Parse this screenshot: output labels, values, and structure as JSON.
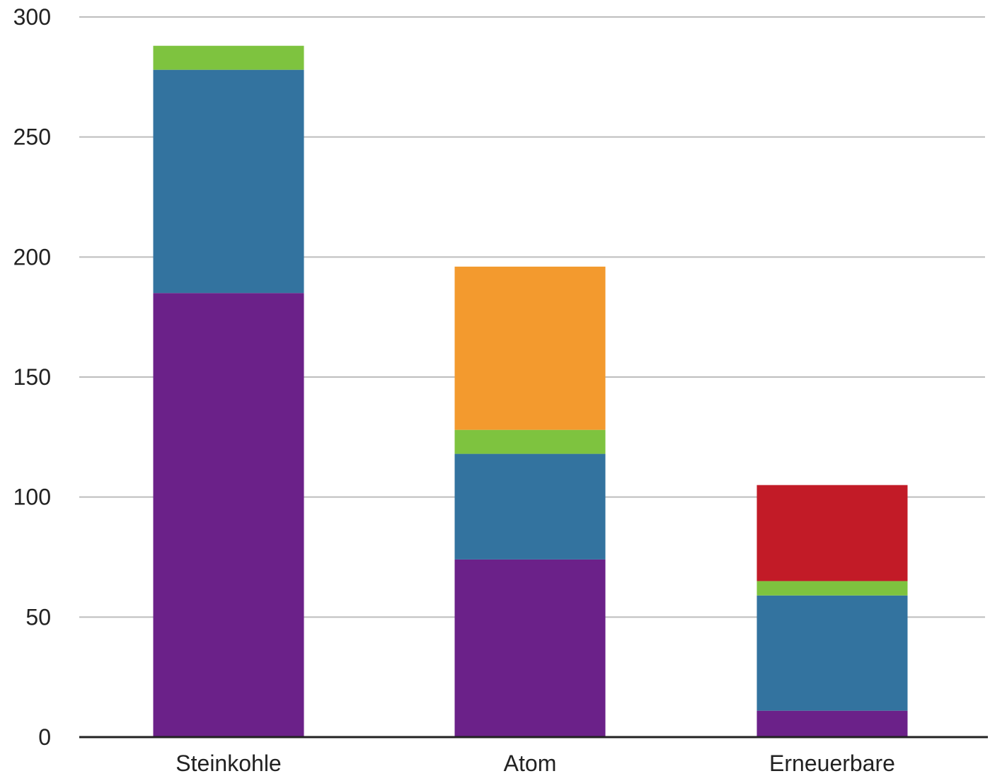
{
  "chart_data": {
    "type": "bar",
    "stacked": true,
    "title": "",
    "xlabel": "",
    "ylabel": "",
    "categories": [
      "Steinkohle",
      "Atom",
      "Erneuerbare"
    ],
    "ylim": [
      0,
      300
    ],
    "yticks": [
      0,
      50,
      100,
      150,
      200,
      250,
      300
    ],
    "grid": true,
    "legend": "none",
    "series": [
      {
        "color": "#6b2189",
        "values": [
          185,
          74,
          11
        ]
      },
      {
        "color": "#33739f",
        "values": [
          93,
          44,
          48
        ]
      },
      {
        "color": "#7ec33f",
        "values": [
          10,
          10,
          6
        ]
      },
      {
        "color": "#f39a2e",
        "values": [
          0,
          68,
          0
        ]
      },
      {
        "color": "#c21b27",
        "values": [
          0,
          0,
          40
        ]
      }
    ]
  }
}
